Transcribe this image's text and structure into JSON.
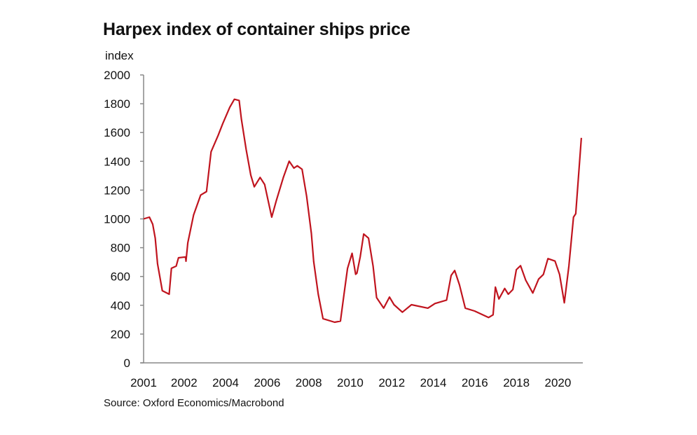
{
  "chart_data": {
    "type": "line",
    "title": "Harpex index of container ships price",
    "ylabel": "index",
    "xlabel": "",
    "source": "Source: Oxford Economics/Macrobond",
    "ylim": [
      0,
      2000
    ],
    "xlim": [
      2000.05,
      2021.2
    ],
    "y_ticks": [
      "0",
      "200",
      "400",
      "600",
      "800",
      "1000",
      "1200",
      "1400",
      "1600",
      "1800",
      "2000"
    ],
    "x_ticks": [
      "2001",
      "2002",
      "2004",
      "2006",
      "2008",
      "2010",
      "2012",
      "2014",
      "2016",
      "2018",
      "2020"
    ],
    "grid": false,
    "line_color": "#c0141e",
    "series": [
      {
        "x": [
          2000.05,
          2000.33,
          2000.49,
          2000.61,
          2000.72,
          2000.95,
          2001.28,
          2001.39,
          2001.62,
          2001.73,
          2002.07,
          2002.09,
          2002.18,
          2002.46,
          2002.8,
          2003.08,
          2003.3,
          2003.64,
          2003.86,
          2004.2,
          2004.42,
          2004.65,
          2004.76,
          2004.99,
          2005.21,
          2005.38,
          2005.66,
          2005.88,
          2006.22,
          2006.44,
          2006.78,
          2007.06,
          2007.29,
          2007.45,
          2007.68,
          2007.9,
          2008.13,
          2008.24,
          2008.46,
          2008.69,
          2009.25,
          2009.53,
          2009.7,
          2009.87,
          2010.09,
          2010.26,
          2010.32,
          2010.48,
          2010.65,
          2010.88,
          2011.1,
          2011.27,
          2011.61,
          2011.89,
          2012.11,
          2012.51,
          2012.95,
          2013.74,
          2014.08,
          2014.64,
          2014.86,
          2015.03,
          2015.26,
          2015.54,
          2015.99,
          2016.66,
          2016.88,
          2016.99,
          2017.16,
          2017.44,
          2017.61,
          2017.83,
          2018.0,
          2018.2,
          2018.45,
          2018.79,
          2019.07,
          2019.3,
          2019.52,
          2019.86,
          2020.08,
          2020.31,
          2020.53,
          2020.75,
          2020.86,
          2021.13
        ],
        "y": [
          1000,
          1012,
          963,
          866,
          688,
          501,
          477,
          657,
          672,
          730,
          736,
          706,
          834,
          1028,
          1166,
          1190,
          1466,
          1580,
          1661,
          1775,
          1831,
          1823,
          1693,
          1482,
          1304,
          1223,
          1288,
          1239,
          1012,
          1126,
          1288,
          1401,
          1353,
          1369,
          1345,
          1158,
          899,
          704,
          477,
          307,
          282,
          290,
          477,
          656,
          761,
          615,
          623,
          736,
          895,
          866,
          672,
          453,
          380,
          457,
          404,
          352,
          404,
          380,
          412,
          436,
          607,
          642,
          542,
          380,
          360,
          315,
          334,
          526,
          444,
          517,
          477,
          509,
          647,
          675,
          574,
          485,
          582,
          614,
          724,
          707,
          614,
          417,
          672,
          1012,
          1036,
          1563
        ]
      }
    ]
  }
}
